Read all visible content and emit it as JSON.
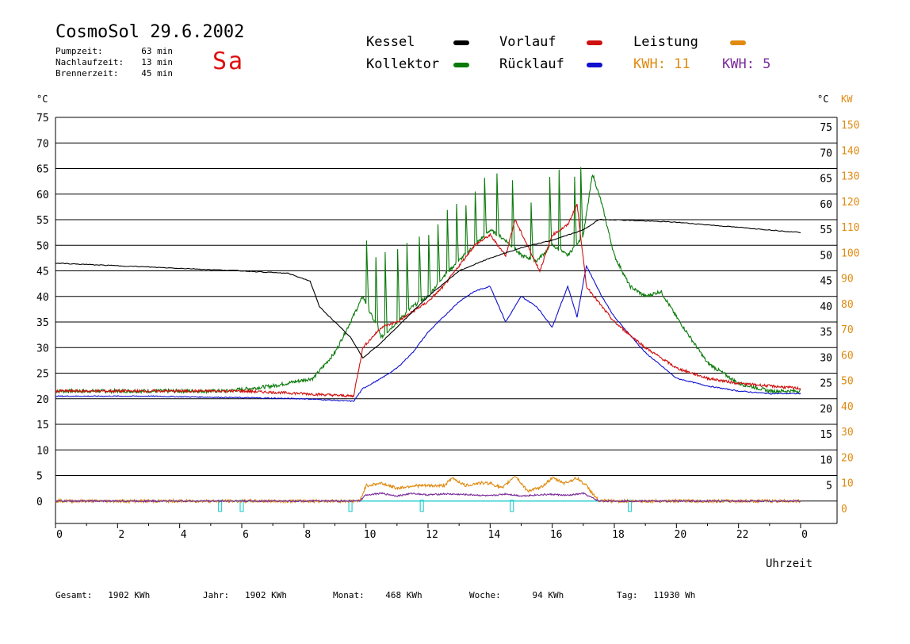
{
  "header": {
    "title": "CosmoSol 29.6.2002",
    "day": "Sa",
    "pumpzeit_label": "Pumpzeit:",
    "pumpzeit_value": "63 min",
    "nachlaufzeit_label": "Nachlaufzeit:",
    "nachlaufzeit_value": "13 min",
    "brennerzeit_label": "Brennerzeit:",
    "brennerzeit_value": "45 min"
  },
  "legend": {
    "kessel": "Kessel",
    "kollektor": "Kollektor",
    "vorlauf": "Vorlauf",
    "ruecklauf": "Rücklauf",
    "leistung": "Leistung",
    "kwh1": "KWH: 11",
    "kwh2": "KWH: 5"
  },
  "colors": {
    "kessel": "#000000",
    "kollektor": "#0a7a0a",
    "vorlauf": "#d01010",
    "ruecklauf": "#1010d0",
    "leistung": "#e08a10",
    "purple": "#7a2a9a",
    "cyan": "#30d0d0"
  },
  "footer": {
    "gesamt_label": "Gesamt:",
    "gesamt_value": "1902 KWh",
    "jahr_label": "Jahr:",
    "jahr_value": "1902 KWh",
    "monat_label": "Monat:",
    "monat_value": "468 KWh",
    "woche_label": "Woche:",
    "woche_value": "94 KWh",
    "tag_label": "Tag:",
    "tag_value": "11930 Wh"
  },
  "chart_data": {
    "type": "line",
    "xlabel": "Uhrzeit",
    "ylabel_left": "°C",
    "ylabel_right": [
      "°C",
      "KW"
    ],
    "xlim": [
      0,
      24
    ],
    "ylim": [
      -5,
      75
    ],
    "x_ticks": [
      "0",
      "2",
      "4",
      "6",
      "8",
      "10",
      "12",
      "14",
      "16",
      "18",
      "20",
      "22",
      "0"
    ],
    "y_ticks_left": [
      "75",
      "70",
      "65",
      "60",
      "55",
      "50",
      "45",
      "40",
      "35",
      "30",
      "25",
      "20",
      "15",
      "10",
      "5",
      "0"
    ],
    "y_ticks_right_c": [
      "75",
      "70",
      "65",
      "60",
      "55",
      "50",
      "45",
      "40",
      "35",
      "30",
      "25",
      "20",
      "15",
      "10",
      "5"
    ],
    "y_ticks_right_kw": [
      "150",
      "140",
      "130",
      "120",
      "110",
      "100",
      "90",
      "80",
      "70",
      "60",
      "50",
      "40",
      "30",
      "20",
      "10",
      "0"
    ],
    "series": [
      {
        "name": "Kessel",
        "color": "#000000",
        "x": [
          0,
          2,
          4,
          6,
          7.5,
          8.2,
          8.5,
          9.0,
          9.5,
          9.9,
          10.5,
          11,
          11.5,
          12,
          12.5,
          13,
          14,
          15,
          16,
          17,
          17.5,
          18,
          20,
          22,
          24
        ],
        "y": [
          46.5,
          46,
          45.5,
          45,
          44.5,
          43,
          38,
          35,
          32,
          28,
          31,
          34,
          37,
          40,
          42.5,
          45,
          47.5,
          49.5,
          51,
          53,
          55,
          55,
          54.5,
          53.5,
          52.5
        ]
      },
      {
        "name": "Kollektor",
        "color": "#0a7a0a",
        "x": [
          0,
          3,
          5.5,
          7,
          8.3,
          9,
          9.5,
          9.9,
          10.5,
          11,
          11.5,
          12,
          12.5,
          13,
          13.5,
          14,
          14.5,
          15,
          15.5,
          16,
          16.5,
          17,
          17.3,
          17.6,
          18,
          18.5,
          19,
          19.5,
          20,
          21,
          22,
          23,
          24
        ],
        "y": [
          21.5,
          21.5,
          21.5,
          22.5,
          24,
          29,
          35,
          40,
          32,
          35,
          38,
          40,
          44,
          47,
          50,
          53,
          51,
          48,
          47,
          50,
          48,
          52,
          64,
          58,
          48,
          42,
          40,
          41,
          36,
          27,
          23,
          21.5,
          21.5
        ],
        "spikes": [
          [
            10.0,
            55
          ],
          [
            10.3,
            52
          ],
          [
            10.6,
            54
          ],
          [
            11.0,
            54
          ],
          [
            11.3,
            55
          ],
          [
            11.7,
            56
          ],
          [
            12.0,
            56
          ],
          [
            12.3,
            58
          ],
          [
            12.6,
            61
          ],
          [
            12.9,
            62
          ],
          [
            13.2,
            61
          ],
          [
            13.5,
            64
          ],
          [
            13.8,
            67
          ],
          [
            14.2,
            68
          ],
          [
            14.7,
            67
          ],
          [
            15.3,
            62
          ],
          [
            15.9,
            68
          ],
          [
            16.2,
            70
          ],
          [
            16.7,
            68
          ],
          [
            16.9,
            70
          ]
        ]
      },
      {
        "name": "Vorlauf",
        "color": "#d01010",
        "x": [
          0,
          3,
          6,
          8,
          9.6,
          9.9,
          10.2,
          10.5,
          11,
          11.5,
          12,
          12.5,
          13,
          13.5,
          14,
          14.5,
          14.8,
          15.2,
          15.6,
          16,
          16.5,
          16.8,
          17.1,
          17.6,
          18,
          19,
          20,
          21,
          22,
          23,
          24
        ],
        "y": [
          21.5,
          21.5,
          21.5,
          21,
          20.5,
          30,
          32,
          34,
          35,
          37,
          39,
          42,
          46,
          50,
          52,
          48,
          55,
          50,
          45,
          52,
          54,
          58,
          42,
          38,
          35,
          30,
          26,
          24,
          23,
          22.5,
          22
        ]
      },
      {
        "name": "Rücklauf",
        "color": "#1010d0",
        "x": [
          0,
          3,
          6,
          8,
          9.6,
          9.9,
          10.5,
          11,
          11.5,
          12,
          12.5,
          13,
          13.5,
          14,
          14.5,
          15,
          15.5,
          16,
          16.5,
          16.8,
          17.1,
          17.6,
          18,
          19,
          20,
          21,
          22,
          23,
          24
        ],
        "y": [
          20.5,
          20.5,
          20.2,
          20,
          19.5,
          22,
          24,
          26,
          29,
          33,
          36,
          39,
          41,
          42,
          35,
          40,
          38,
          34,
          42,
          36,
          46,
          40,
          36,
          29,
          24,
          22.5,
          21.5,
          21,
          21
        ]
      },
      {
        "name": "Leistung",
        "color": "#e08a10",
        "x": [
          0,
          9.8,
          10.0,
          10.5,
          11,
          11.5,
          12,
          12.5,
          12.8,
          13.2,
          13.6,
          14,
          14.4,
          14.8,
          15.2,
          15.6,
          16,
          16.4,
          16.8,
          17.1,
          17.5,
          24
        ],
        "y": [
          0,
          0,
          3,
          3.5,
          2.5,
          3,
          3,
          3,
          4.5,
          3,
          3.5,
          3.5,
          2.5,
          5,
          2,
          2.5,
          4.5,
          3.5,
          4.5,
          3,
          0,
          0
        ]
      },
      {
        "name": "KWH purple",
        "color": "#7a2a9a",
        "x": [
          0,
          9.8,
          10.0,
          10.5,
          11,
          11.5,
          12,
          12.5,
          13,
          13.5,
          14,
          14.5,
          15,
          15.5,
          16,
          16.5,
          17,
          17.5,
          24
        ],
        "y": [
          0,
          0,
          1.2,
          1.5,
          1,
          1.5,
          1.2,
          1.4,
          1.3,
          1.2,
          1,
          1.4,
          1,
          1.2,
          1.3,
          1.1,
          1.5,
          0,
          0
        ]
      }
    ],
    "markers_cyan_x": [
      5.3,
      6.0,
      9.5,
      11.8,
      14.7,
      18.5
    ],
    "baseline": 0
  }
}
